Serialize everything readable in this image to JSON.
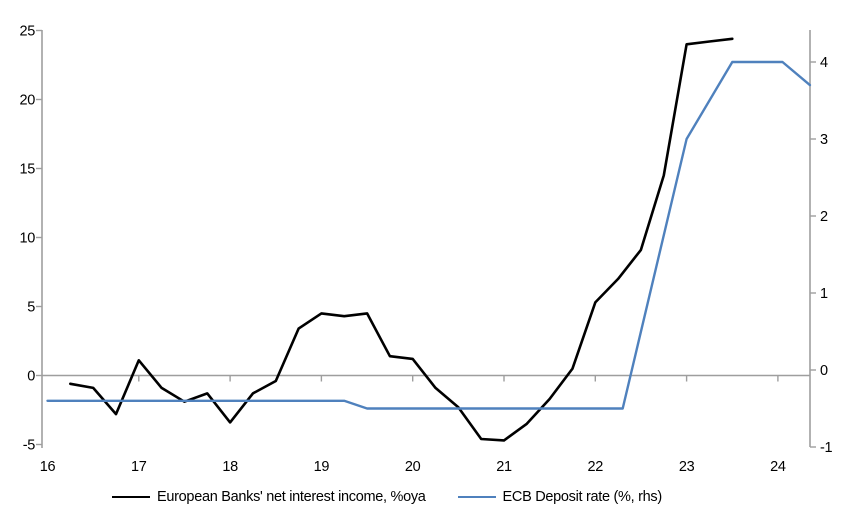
{
  "chart_data": {
    "type": "line",
    "title": "",
    "legend_position": "bottom",
    "grid": false,
    "x_axis": {
      "ticks": [
        16,
        17,
        18,
        19,
        20,
        21,
        22,
        23,
        24
      ],
      "min": 15.95,
      "max": 24.35,
      "label": ""
    },
    "left_axis": {
      "ticks": [
        25,
        20,
        15,
        10,
        5,
        0,
        -5
      ],
      "min": -5,
      "max": 25,
      "label": ""
    },
    "right_axis": {
      "ticks": [
        4,
        3,
        2,
        1,
        0,
        -1
      ],
      "min": -1.05,
      "max": 4.45,
      "label": ""
    },
    "zero_line_value": 0,
    "series": [
      {
        "name": "European Banks' net interest income, %oya",
        "axis": "left",
        "color": "#000000",
        "width": 2.6,
        "points": [
          [
            16.25,
            -0.6
          ],
          [
            16.5,
            -0.9
          ],
          [
            16.75,
            -2.8
          ],
          [
            17.0,
            1.1
          ],
          [
            17.25,
            -0.9
          ],
          [
            17.5,
            -1.9
          ],
          [
            17.75,
            -1.3
          ],
          [
            18.0,
            -3.4
          ],
          [
            18.25,
            -1.3
          ],
          [
            18.5,
            -0.4
          ],
          [
            18.75,
            3.4
          ],
          [
            19.0,
            4.5
          ],
          [
            19.25,
            4.3
          ],
          [
            19.5,
            4.5
          ],
          [
            19.75,
            1.4
          ],
          [
            20.0,
            1.2
          ],
          [
            20.25,
            -0.9
          ],
          [
            20.5,
            -2.3
          ],
          [
            20.75,
            -4.6
          ],
          [
            21.0,
            -4.7
          ],
          [
            21.25,
            -3.5
          ],
          [
            21.5,
            -1.7
          ],
          [
            21.75,
            0.5
          ],
          [
            22.0,
            5.3
          ],
          [
            22.25,
            7.0
          ],
          [
            22.5,
            9.1
          ],
          [
            22.75,
            14.5
          ],
          [
            23.0,
            24.0
          ],
          [
            23.25,
            24.2
          ],
          [
            23.5,
            24.4
          ]
        ]
      },
      {
        "name": "ECB Deposit rate (%, rhs)",
        "axis": "right",
        "color": "#4F81BD",
        "width": 2.4,
        "points": [
          [
            16.0,
            -0.4
          ],
          [
            19.25,
            -0.4
          ],
          [
            19.5,
            -0.5
          ],
          [
            22.3,
            -0.5
          ],
          [
            23.0,
            3.0
          ],
          [
            23.5,
            4.0
          ],
          [
            24.05,
            4.0
          ],
          [
            24.35,
            3.7
          ]
        ]
      }
    ]
  },
  "colors": {
    "axis": "#9e9e9e",
    "tick_text": "#000000",
    "background": "#ffffff",
    "series_nii": "#000000",
    "series_ecb": "#4F81BD"
  }
}
